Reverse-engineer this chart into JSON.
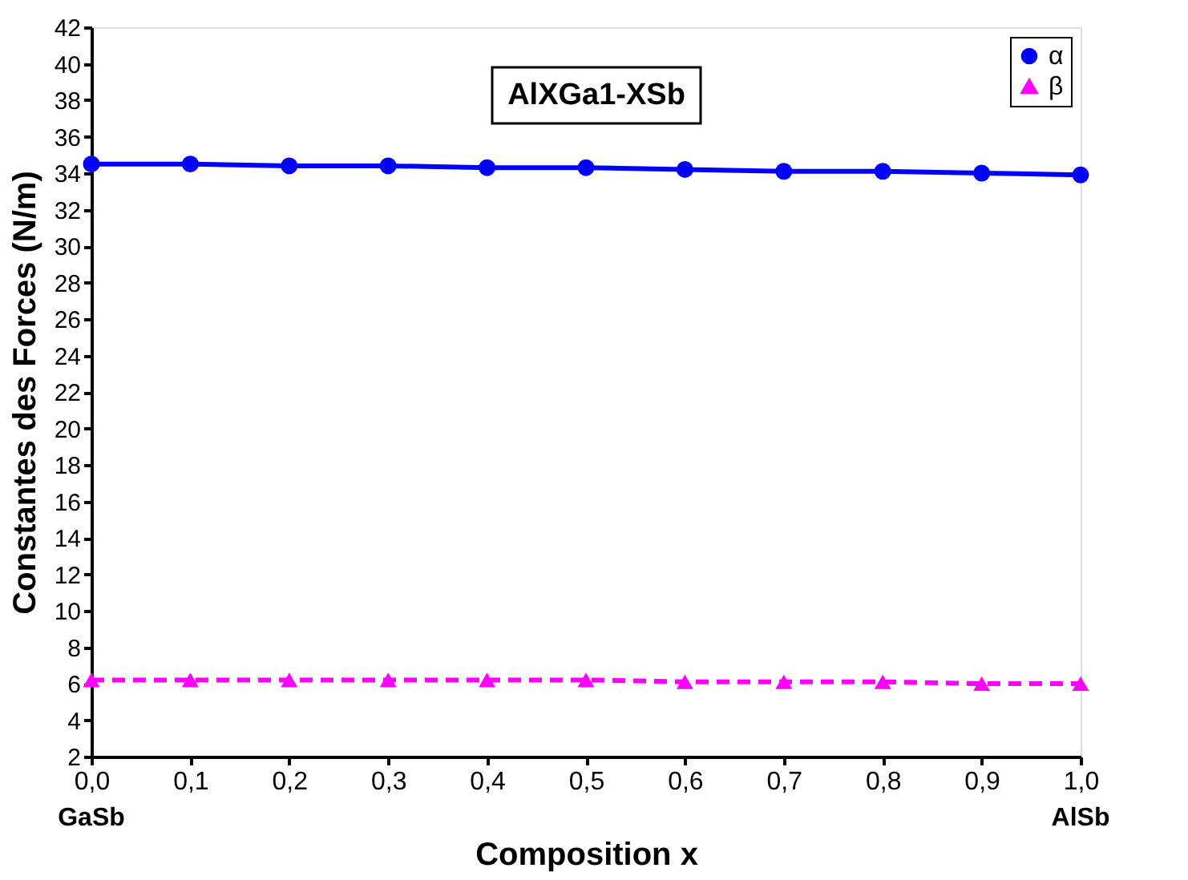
{
  "chart_data": {
    "type": "line",
    "xlabel": "Composition x",
    "ylabel": "Constantes des Forces (N/m)",
    "x": [
      0,
      0.1,
      0.2,
      0.3,
      0.4,
      0.5,
      0.6,
      0.7,
      0.8,
      0.9,
      1.0
    ],
    "series": [
      {
        "name": "α",
        "color": "#0000ff",
        "marker": "circle",
        "line_style": "solid",
        "values": [
          34.5,
          34.5,
          34.4,
          34.4,
          34.3,
          34.3,
          34.2,
          34.1,
          34.1,
          34.0,
          33.9
        ]
      },
      {
        "name": "β",
        "color": "#ff00ff",
        "marker": "triangle",
        "line_style": "dashed",
        "values": [
          6.2,
          6.2,
          6.2,
          6.2,
          6.2,
          6.2,
          6.1,
          6.1,
          6.1,
          6.0,
          6.0
        ]
      }
    ],
    "xlim": [
      0,
      1.0
    ],
    "ylim": [
      2,
      42
    ],
    "xticks": [
      {
        "value": 0,
        "label": "0,0"
      },
      {
        "value": 0.1,
        "label": "0,1"
      },
      {
        "value": 0.2,
        "label": "0,2"
      },
      {
        "value": 0.3,
        "label": "0,3"
      },
      {
        "value": 0.4,
        "label": "0,4"
      },
      {
        "value": 0.5,
        "label": "0,5"
      },
      {
        "value": 0.6,
        "label": "0,6"
      },
      {
        "value": 0.7,
        "label": "0,7"
      },
      {
        "value": 0.8,
        "label": "0,8"
      },
      {
        "value": 0.9,
        "label": "0,9"
      },
      {
        "value": 1.0,
        "label": "1,0"
      }
    ],
    "yticks": [
      2,
      4,
      6,
      8,
      10,
      12,
      14,
      16,
      18,
      20,
      22,
      24,
      26,
      28,
      30,
      32,
      34,
      36,
      38,
      40,
      42
    ],
    "annotations": [
      "AlXGa1-XSb",
      "GaSb",
      "AlSb"
    ],
    "legend": "top right",
    "grid": false
  }
}
